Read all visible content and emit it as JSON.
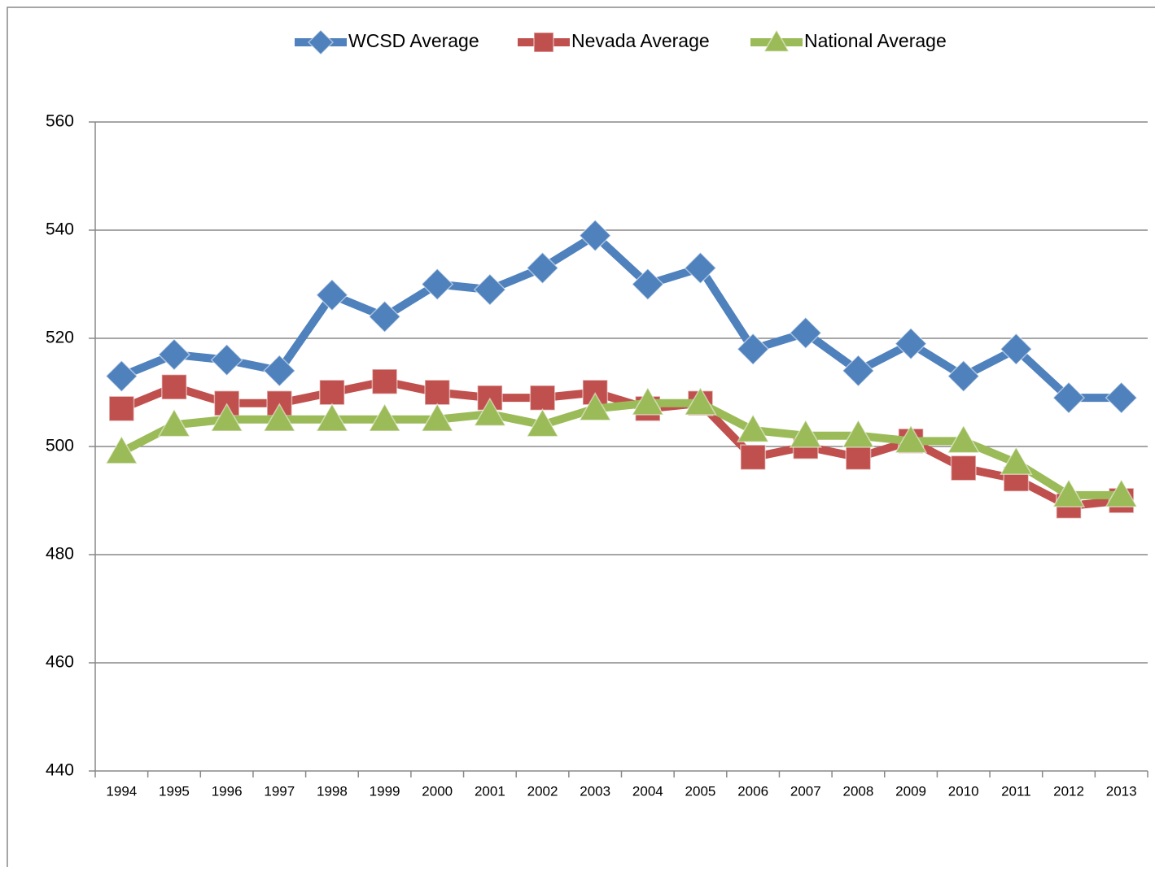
{
  "chart_data": {
    "type": "line",
    "categories": [
      "1994",
      "1995",
      "1996",
      "1997",
      "1998",
      "1999",
      "2000",
      "2001",
      "2002",
      "2003",
      "2004",
      "2005",
      "2006",
      "2007",
      "2008",
      "2009",
      "2010",
      "2011",
      "2012",
      "2013"
    ],
    "series": [
      {
        "name": "WCSD Average",
        "color": "#4f81bd",
        "marker": "diamond",
        "values": [
          513,
          517,
          516,
          514,
          528,
          524,
          530,
          529,
          533,
          539,
          530,
          533,
          518,
          521,
          514,
          519,
          513,
          518,
          509,
          509
        ]
      },
      {
        "name": "Nevada Average",
        "color": "#c0504d",
        "marker": "square",
        "values": [
          507,
          511,
          508,
          508,
          510,
          512,
          510,
          509,
          509,
          510,
          507,
          508,
          498,
          500,
          498,
          501,
          496,
          494,
          489,
          490
        ]
      },
      {
        "name": "National Average",
        "color": "#9bbb59",
        "marker": "triangle",
        "values": [
          499,
          504,
          505,
          505,
          505,
          505,
          505,
          506,
          504,
          507,
          508,
          508,
          503,
          502,
          502,
          501,
          501,
          497,
          491,
          491
        ]
      }
    ],
    "ylim": [
      440,
      560
    ],
    "yticks": [
      440,
      460,
      480,
      500,
      520,
      540,
      560
    ],
    "grid": true,
    "legend": "top"
  }
}
